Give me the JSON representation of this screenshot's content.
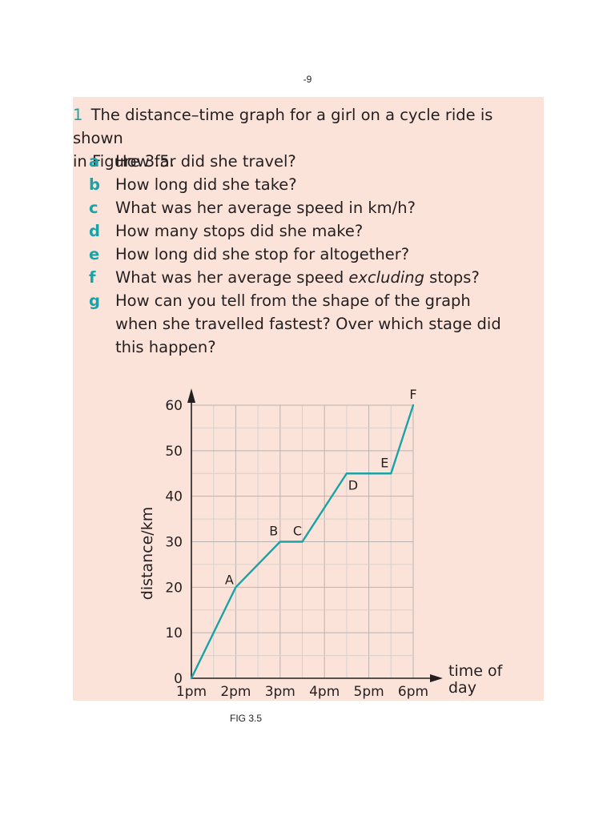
{
  "page_number": "-9",
  "question": {
    "number": "1",
    "intro_line1": "The distance–time graph for a girl on a cycle ride is shown",
    "intro_line2": "in Figure 3.5.",
    "parts": [
      {
        "letter": "a",
        "text": "How far did she travel?"
      },
      {
        "letter": "b",
        "text": "How long did she take?"
      },
      {
        "letter": "c",
        "text": "What was her average speed in km/h?"
      },
      {
        "letter": "d",
        "text": "How many stops did she make?"
      },
      {
        "letter": "e",
        "text": "How long did she stop for altogether?"
      },
      {
        "letter": "f",
        "text_before": "What was her average speed ",
        "text_em": "excluding",
        "text_after": " stops?"
      },
      {
        "letter": "g",
        "line1": "How can you tell from the shape of the graph",
        "line2": "when she travelled fastest? Over which stage did",
        "line3": "this happen?"
      }
    ]
  },
  "chart_data": {
    "type": "line",
    "ylabel": "distance/km",
    "xlabel_line1": "time of",
    "xlabel_line2": "day",
    "x_ticks": [
      "1pm",
      "2pm",
      "3pm",
      "4pm",
      "5pm",
      "6pm"
    ],
    "y_ticks": [
      "0",
      "10",
      "20",
      "30",
      "40",
      "50",
      "60"
    ],
    "xlim": [
      1,
      6
    ],
    "ylim": [
      0,
      60
    ],
    "grid": true,
    "line_color": "#1aa3a6",
    "points": [
      {
        "x": 1,
        "y": 0,
        "label": ""
      },
      {
        "x": 2,
        "y": 20,
        "label": "A"
      },
      {
        "x": 3,
        "y": 30,
        "label": "B"
      },
      {
        "x": 3.5,
        "y": 30,
        "label": "C"
      },
      {
        "x": 4.5,
        "y": 45,
        "label": "D"
      },
      {
        "x": 5.5,
        "y": 45,
        "label": "E"
      },
      {
        "x": 6,
        "y": 60,
        "label": "F"
      }
    ]
  },
  "caption": "FIG 3.5"
}
